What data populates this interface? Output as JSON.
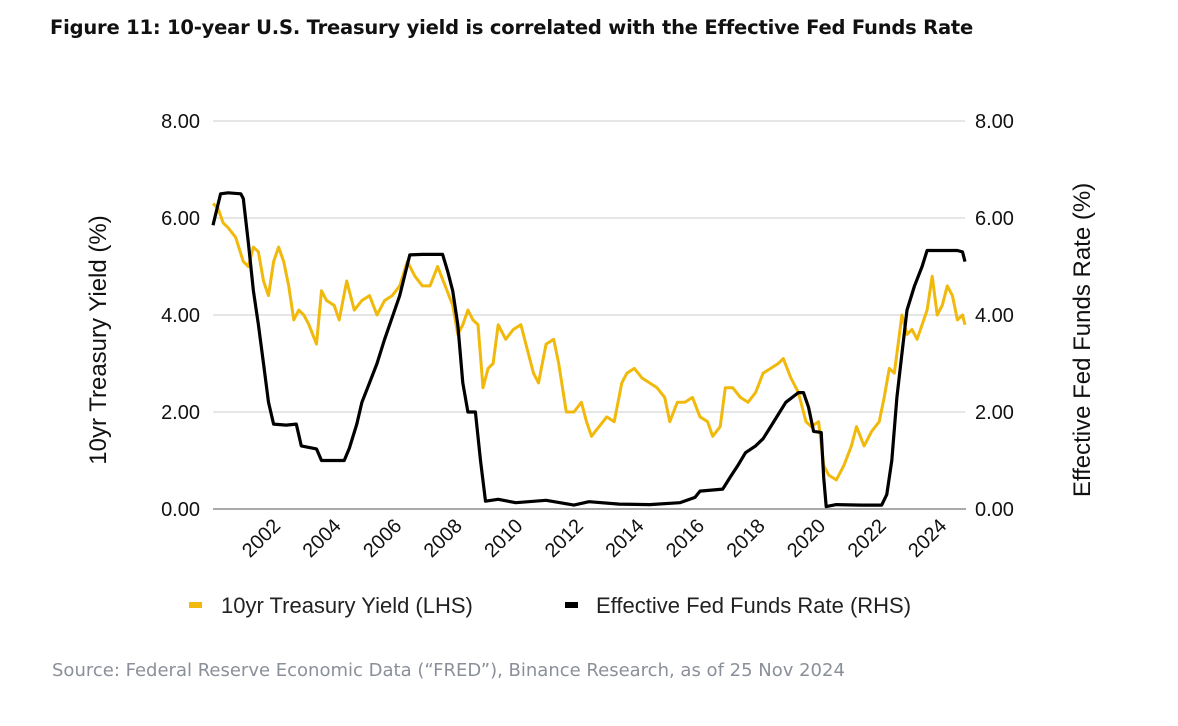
{
  "title": "Figure 11: 10-year U.S. Treasury yield is correlated with the Effective Fed Funds Rate",
  "source": "Source: Federal Reserve Economic Data (“FRED”), Binance Research, as of 25 Nov 2024",
  "chart_data": {
    "type": "line",
    "title": "Figure 11: 10-year U.S. Treasury yield is correlated with the Effective Fed Funds Rate",
    "ylabel": "10yr Treasury Yield (%)",
    "y2label": "Effective Fed Funds Rate (%)",
    "ylim": [
      0,
      8
    ],
    "y2lim": [
      0,
      8
    ],
    "yticks": [
      "0.00",
      "2.00",
      "4.00",
      "6.00",
      "8.00"
    ],
    "xticks": [
      "2002",
      "2004",
      "2006",
      "2008",
      "2010",
      "2012",
      "2014",
      "2016",
      "2018",
      "2020",
      "2022",
      "2024"
    ],
    "xrange": [
      "2000-01",
      "2024-11"
    ],
    "grid": "horizontal",
    "legend_position": "bottom",
    "colors": {
      "yield": "#F0B90B",
      "fedfunds": "#000000",
      "grid": "#cccccc"
    },
    "series": [
      {
        "name": "10yr Treasury Yield (LHS)",
        "axis": "left",
        "color": "#F0B90B",
        "x": [
          "2000-01",
          "2000-03",
          "2000-05",
          "2000-07",
          "2000-10",
          "2001-01",
          "2001-03",
          "2001-05",
          "2001-07",
          "2001-09",
          "2001-11",
          "2002-01",
          "2002-03",
          "2002-05",
          "2002-07",
          "2002-09",
          "2002-11",
          "2003-01",
          "2003-03",
          "2003-06",
          "2003-08",
          "2003-10",
          "2004-01",
          "2004-03",
          "2004-06",
          "2004-09",
          "2004-12",
          "2005-03",
          "2005-06",
          "2005-09",
          "2005-12",
          "2006-03",
          "2006-06",
          "2006-09",
          "2006-12",
          "2007-03",
          "2007-06",
          "2007-09",
          "2007-12",
          "2008-02",
          "2008-04",
          "2008-06",
          "2008-08",
          "2008-10",
          "2008-12",
          "2009-02",
          "2009-04",
          "2009-06",
          "2009-09",
          "2009-12",
          "2010-03",
          "2010-05",
          "2010-08",
          "2010-10",
          "2011-01",
          "2011-04",
          "2011-06",
          "2011-09",
          "2011-12",
          "2012-03",
          "2012-05",
          "2012-07",
          "2012-10",
          "2013-01",
          "2013-04",
          "2013-07",
          "2013-09",
          "2013-12",
          "2014-03",
          "2014-06",
          "2014-09",
          "2014-12",
          "2015-02",
          "2015-05",
          "2015-08",
          "2015-11",
          "2016-02",
          "2016-05",
          "2016-07",
          "2016-10",
          "2016-12",
          "2017-03",
          "2017-06",
          "2017-09",
          "2017-12",
          "2018-03",
          "2018-06",
          "2018-09",
          "2018-11",
          "2019-02",
          "2019-05",
          "2019-08",
          "2019-10",
          "2020-01",
          "2020-03",
          "2020-05",
          "2020-08",
          "2020-11",
          "2021-02",
          "2021-04",
          "2021-07",
          "2021-10",
          "2022-01",
          "2022-03",
          "2022-05",
          "2022-07",
          "2022-09",
          "2022-10",
          "2022-12",
          "2023-02",
          "2023-04",
          "2023-06",
          "2023-08",
          "2023-10",
          "2023-12",
          "2024-02",
          "2024-04",
          "2024-06",
          "2024-08",
          "2024-10",
          "2024-11"
        ],
        "values": [
          6.3,
          6.2,
          5.9,
          5.8,
          5.6,
          5.1,
          5.0,
          5.4,
          5.3,
          4.7,
          4.4,
          5.1,
          5.4,
          5.1,
          4.6,
          3.9,
          4.1,
          4.0,
          3.8,
          3.4,
          4.5,
          4.3,
          4.2,
          3.9,
          4.7,
          4.1,
          4.3,
          4.4,
          4.0,
          4.3,
          4.4,
          4.6,
          5.1,
          4.8,
          4.6,
          4.6,
          5.0,
          4.6,
          4.2,
          3.6,
          3.8,
          4.1,
          3.9,
          3.8,
          2.5,
          2.9,
          3.0,
          3.8,
          3.5,
          3.7,
          3.8,
          3.4,
          2.8,
          2.6,
          3.4,
          3.5,
          3.0,
          2.0,
          2.0,
          2.2,
          1.8,
          1.5,
          1.7,
          1.9,
          1.8,
          2.6,
          2.8,
          2.9,
          2.7,
          2.6,
          2.5,
          2.3,
          1.8,
          2.2,
          2.2,
          2.3,
          1.9,
          1.8,
          1.5,
          1.7,
          2.5,
          2.5,
          2.3,
          2.2,
          2.4,
          2.8,
          2.9,
          3.0,
          3.1,
          2.7,
          2.4,
          1.8,
          1.7,
          1.8,
          0.9,
          0.7,
          0.6,
          0.9,
          1.3,
          1.7,
          1.3,
          1.6,
          1.8,
          2.3,
          2.9,
          2.8,
          3.6,
          4.0,
          3.6,
          3.7,
          3.5,
          3.8,
          4.1,
          4.8,
          4.0,
          4.2,
          4.6,
          4.4,
          3.9,
          4.0,
          3.8
        ]
      },
      {
        "name": "Effective Fed Funds Rate (RHS)",
        "axis": "right",
        "color": "#000000",
        "x": [
          "2000-01",
          "2000-04",
          "2000-07",
          "2000-12",
          "2001-01",
          "2001-03",
          "2001-05",
          "2001-07",
          "2001-09",
          "2001-11",
          "2002-01",
          "2002-06",
          "2002-10",
          "2002-12",
          "2003-06",
          "2003-08",
          "2004-05",
          "2004-07",
          "2004-10",
          "2004-12",
          "2005-03",
          "2005-06",
          "2005-09",
          "2005-12",
          "2006-03",
          "2006-07",
          "2006-12",
          "2007-06",
          "2007-08",
          "2007-10",
          "2007-12",
          "2008-02",
          "2008-04",
          "2008-06",
          "2008-09",
          "2008-11",
          "2009-01",
          "2009-06",
          "2010-01",
          "2011-01",
          "2011-12",
          "2012-06",
          "2013-06",
          "2014-06",
          "2015-06",
          "2015-12",
          "2016-02",
          "2016-11",
          "2017-02",
          "2017-05",
          "2017-08",
          "2017-12",
          "2018-03",
          "2018-06",
          "2018-09",
          "2018-12",
          "2019-05",
          "2019-07",
          "2019-09",
          "2019-11",
          "2020-02",
          "2020-03",
          "2020-04",
          "2020-08",
          "2021-06",
          "2022-02",
          "2022-04",
          "2022-06",
          "2022-08",
          "2022-10",
          "2022-12",
          "2023-03",
          "2023-06",
          "2023-08",
          "2024-01",
          "2024-08",
          "2024-10",
          "2024-11"
        ],
        "values": [
          5.85,
          6.5,
          6.52,
          6.5,
          6.4,
          5.5,
          4.5,
          3.8,
          3.0,
          2.2,
          1.75,
          1.73,
          1.75,
          1.3,
          1.24,
          1.0,
          1.0,
          1.25,
          1.75,
          2.2,
          2.6,
          3.0,
          3.5,
          3.95,
          4.4,
          5.24,
          5.25,
          5.25,
          5.25,
          4.9,
          4.5,
          3.8,
          2.6,
          2.0,
          2.0,
          1.0,
          0.16,
          0.2,
          0.13,
          0.18,
          0.08,
          0.15,
          0.1,
          0.09,
          0.13,
          0.24,
          0.37,
          0.41,
          0.66,
          0.9,
          1.16,
          1.3,
          1.45,
          1.7,
          1.95,
          2.2,
          2.4,
          2.4,
          2.1,
          1.6,
          1.58,
          0.65,
          0.05,
          0.09,
          0.08,
          0.08,
          0.3,
          1.0,
          2.3,
          3.2,
          4.1,
          4.6,
          5.0,
          5.33,
          5.33,
          5.33,
          5.3,
          5.1
        ]
      }
    ]
  }
}
